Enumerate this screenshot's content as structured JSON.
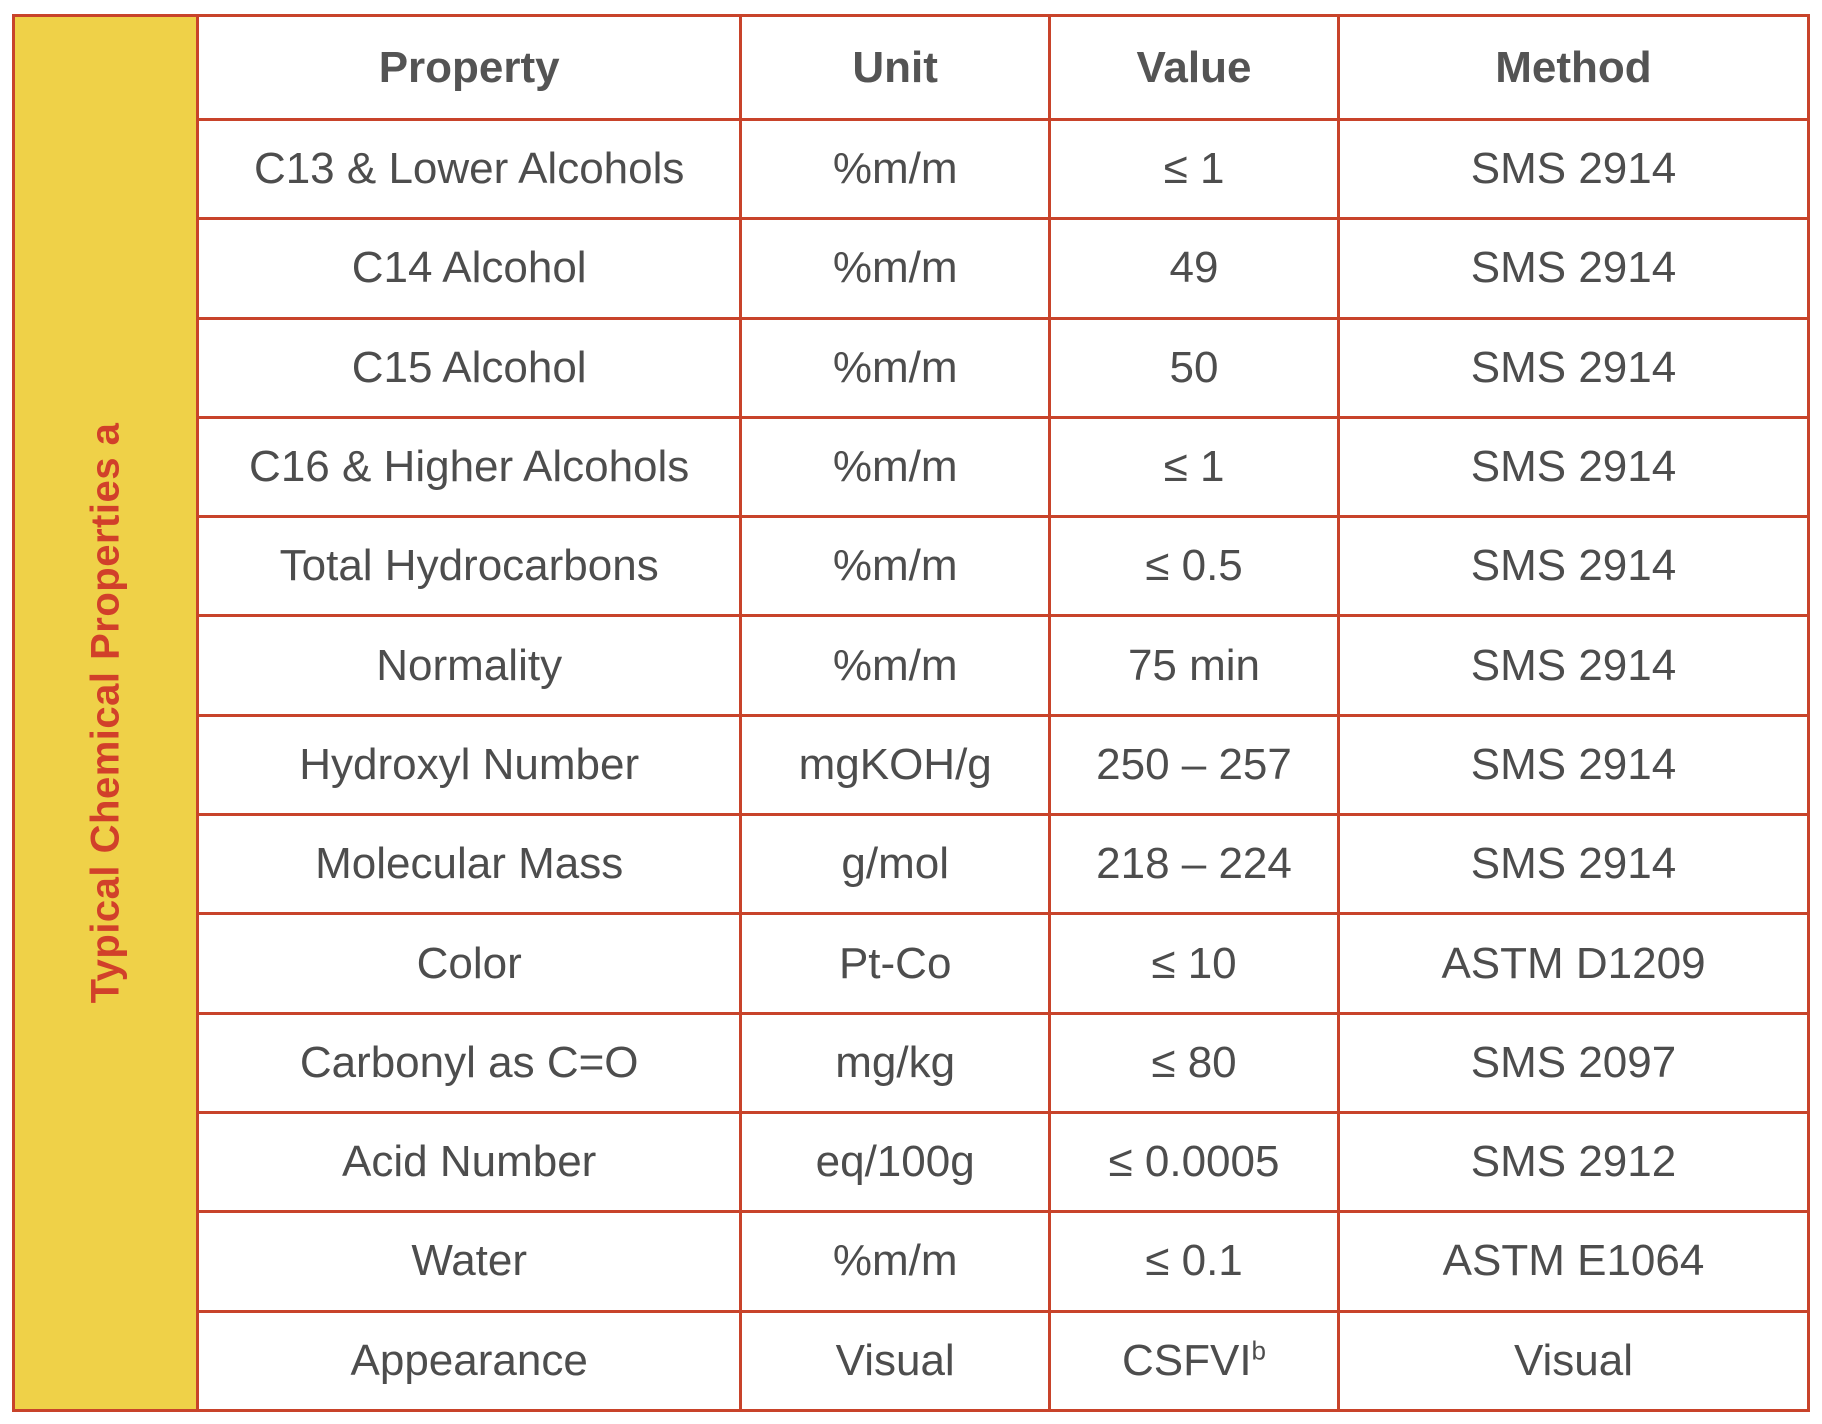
{
  "side_label": "Typical Chemical Properties a",
  "table": {
    "headers": [
      "Property",
      "Unit",
      "Value",
      "Method"
    ],
    "rows": [
      [
        "C13 & Lower Alcohols",
        "%m/m",
        "≤ 1",
        "SMS 2914"
      ],
      [
        "C14 Alcohol",
        "%m/m",
        "49",
        "SMS 2914"
      ],
      [
        "C15 Alcohol",
        "%m/m",
        "50",
        "SMS 2914"
      ],
      [
        "C16 & Higher Alcohols",
        "%m/m",
        "≤ 1",
        "SMS 2914"
      ],
      [
        "Total Hydrocarbons",
        "%m/m",
        "≤ 0.5",
        "SMS 2914"
      ],
      [
        "Normality",
        "%m/m",
        "75 min",
        "SMS 2914"
      ],
      [
        "Hydroxyl Number",
        "mgKOH/g",
        "250 – 257",
        "SMS 2914"
      ],
      [
        "Molecular Mass",
        "g/mol",
        "218 – 224",
        "SMS 2914"
      ],
      [
        "Color",
        "Pt-Co",
        "≤ 10",
        "ASTM D1209"
      ],
      [
        "Carbonyl as C=O",
        "mg/kg",
        "≤ 80",
        "SMS 2097"
      ],
      [
        "Acid Number",
        "eq/100g",
        "≤ 0.0005",
        "SMS 2912"
      ],
      [
        "Water",
        "%m/m",
        "≤ 0.1",
        "ASTM E1064"
      ],
      [
        "Appearance",
        "Visual",
        "CSFVI",
        "Visual"
      ]
    ],
    "appearance_value_superscript": "b"
  },
  "colors": {
    "border": "#c8432a",
    "side_fill": "#efd148",
    "side_text": "#d1402a",
    "text": "#4d4d4d"
  }
}
